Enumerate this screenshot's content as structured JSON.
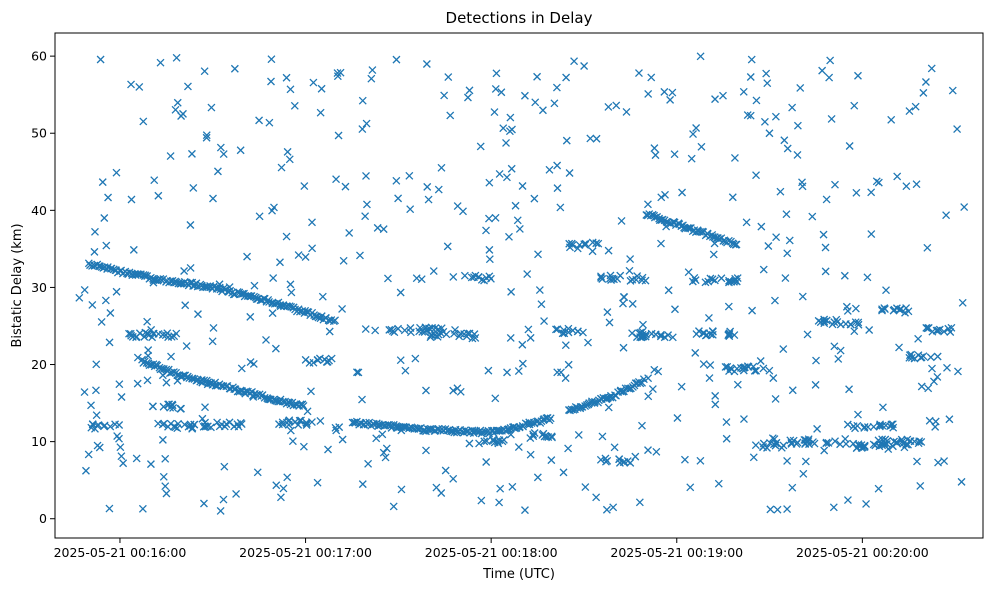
{
  "chart_data": {
    "type": "scatter",
    "title": "Detections in Delay",
    "xlabel": "Time (UTC)",
    "ylabel": "Bistatic Delay (km)",
    "marker": "x",
    "color": "#1f77b4",
    "grid": false,
    "legend": "none",
    "xlim": [
      "2025-05-21 00:15:39",
      "2025-05-21 00:20:39"
    ],
    "ylim": [
      -2.5,
      63
    ],
    "x_ticks": [
      "2025-05-21 00:16:00",
      "2025-05-21 00:17:00",
      "2025-05-21 00:18:00",
      "2025-05-21 00:19:00",
      "2025-05-21 00:20:00"
    ],
    "y_ticks": [
      0,
      10,
      20,
      30,
      40,
      50,
      60
    ],
    "tracks": [
      {
        "x": [
          "2025-05-21 00:15:50",
          "2025-05-21 00:16:10",
          "2025-05-21 00:16:30",
          "2025-05-21 00:16:50",
          "2025-05-21 00:17:10"
        ],
        "y": [
          33,
          31.2,
          30,
          28,
          25.5
        ]
      },
      {
        "x": [
          "2025-05-21 00:16:07",
          "2025-05-21 00:16:20",
          "2025-05-21 00:16:40",
          "2025-05-21 00:17:00"
        ],
        "y": [
          20.5,
          18.5,
          16.5,
          14.5
        ]
      },
      {
        "x": [
          "2025-05-21 00:17:15",
          "2025-05-21 00:17:40",
          "2025-05-21 00:18:00",
          "2025-05-21 00:18:20"
        ],
        "y": [
          12.5,
          11.5,
          11.2,
          13
        ]
      },
      {
        "x": [
          "2025-05-21 00:18:25",
          "2025-05-21 00:18:40",
          "2025-05-21 00:18:50"
        ],
        "y": [
          14,
          16,
          18
        ]
      },
      {
        "x": [
          "2025-05-21 00:18:50",
          "2025-05-21 00:19:05",
          "2025-05-21 00:19:20"
        ],
        "y": [
          39.5,
          37.5,
          35.5
        ]
      }
    ],
    "clusters": [
      {
        "x": [
          "2025-05-21 00:15:50",
          "2025-05-21 00:16:00"
        ],
        "y": 12
      },
      {
        "x": [
          "2025-05-21 00:16:10",
          "2025-05-21 00:16:25"
        ],
        "y": 12
      },
      {
        "x": [
          "2025-05-21 00:16:25",
          "2025-05-21 00:16:40"
        ],
        "y": 12.2
      },
      {
        "x": [
          "2025-05-21 00:16:50",
          "2025-05-21 00:17:05"
        ],
        "y": 12.5
      },
      {
        "x": [
          "2025-05-21 00:16:10",
          "2025-05-21 00:16:20"
        ],
        "y": 14.5
      },
      {
        "x": [
          "2025-05-21 00:16:00",
          "2025-05-21 00:16:20"
        ],
        "y": 23.8
      },
      {
        "x": [
          "2025-05-21 00:17:00",
          "2025-05-21 00:17:10"
        ],
        "y": 20.5
      },
      {
        "x": [
          "2025-05-21 00:17:25",
          "2025-05-21 00:17:45"
        ],
        "y": 24.5
      },
      {
        "x": [
          "2025-05-21 00:17:40",
          "2025-05-21 00:17:55"
        ],
        "y": 23.7
      },
      {
        "x": [
          "2025-05-21 00:17:50",
          "2025-05-21 00:18:00"
        ],
        "y": 31.2
      },
      {
        "x": [
          "2025-05-21 00:17:55",
          "2025-05-21 00:18:05"
        ],
        "y": 10
      },
      {
        "x": [
          "2025-05-21 00:18:10",
          "2025-05-21 00:18:20"
        ],
        "y": 10.8
      },
      {
        "x": [
          "2025-05-21 00:18:20",
          "2025-05-21 00:18:30"
        ],
        "y": 24.3
      },
      {
        "x": [
          "2025-05-21 00:18:25",
          "2025-05-21 00:18:35"
        ],
        "y": 35.5
      },
      {
        "x": [
          "2025-05-21 00:18:35",
          "2025-05-21 00:18:50"
        ],
        "y": 31.2
      },
      {
        "x": [
          "2025-05-21 00:18:35",
          "2025-05-21 00:18:45"
        ],
        "y": 7.5
      },
      {
        "x": [
          "2025-05-21 00:18:45",
          "2025-05-21 00:19:00"
        ],
        "y": 23.8
      },
      {
        "x": [
          "2025-05-21 00:19:05",
          "2025-05-21 00:19:20"
        ],
        "y": 31
      },
      {
        "x": [
          "2025-05-21 00:19:05",
          "2025-05-21 00:19:20"
        ],
        "y": 24
      },
      {
        "x": [
          "2025-05-21 00:19:15",
          "2025-05-21 00:19:30"
        ],
        "y": 19.5
      },
      {
        "x": [
          "2025-05-21 00:19:25",
          "2025-05-21 00:19:35"
        ],
        "y": 9.5
      },
      {
        "x": [
          "2025-05-21 00:19:35",
          "2025-05-21 00:19:55"
        ],
        "y": 10
      },
      {
        "x": [
          "2025-05-21 00:19:45",
          "2025-05-21 00:20:00"
        ],
        "y": 25.5
      },
      {
        "x": [
          "2025-05-21 00:19:55",
          "2025-05-21 00:20:10"
        ],
        "y": 12
      },
      {
        "x": [
          "2025-05-21 00:19:55",
          "2025-05-21 00:20:15"
        ],
        "y": 9.5
      },
      {
        "x": [
          "2025-05-21 00:20:05",
          "2025-05-21 00:20:20"
        ],
        "y": 10
      },
      {
        "x": [
          "2025-05-21 00:20:05",
          "2025-05-21 00:20:15"
        ],
        "y": 27
      },
      {
        "x": [
          "2025-05-21 00:20:15",
          "2025-05-21 00:20:25"
        ],
        "y": 21
      },
      {
        "x": [
          "2025-05-21 00:20:20",
          "2025-05-21 00:20:30"
        ],
        "y": 24.5
      }
    ],
    "scattered": {
      "x": [
        "2025-05-21 00:15:39",
        "2025-05-21 00:20:39"
      ],
      "y": [
        0,
        60
      ]
    }
  }
}
